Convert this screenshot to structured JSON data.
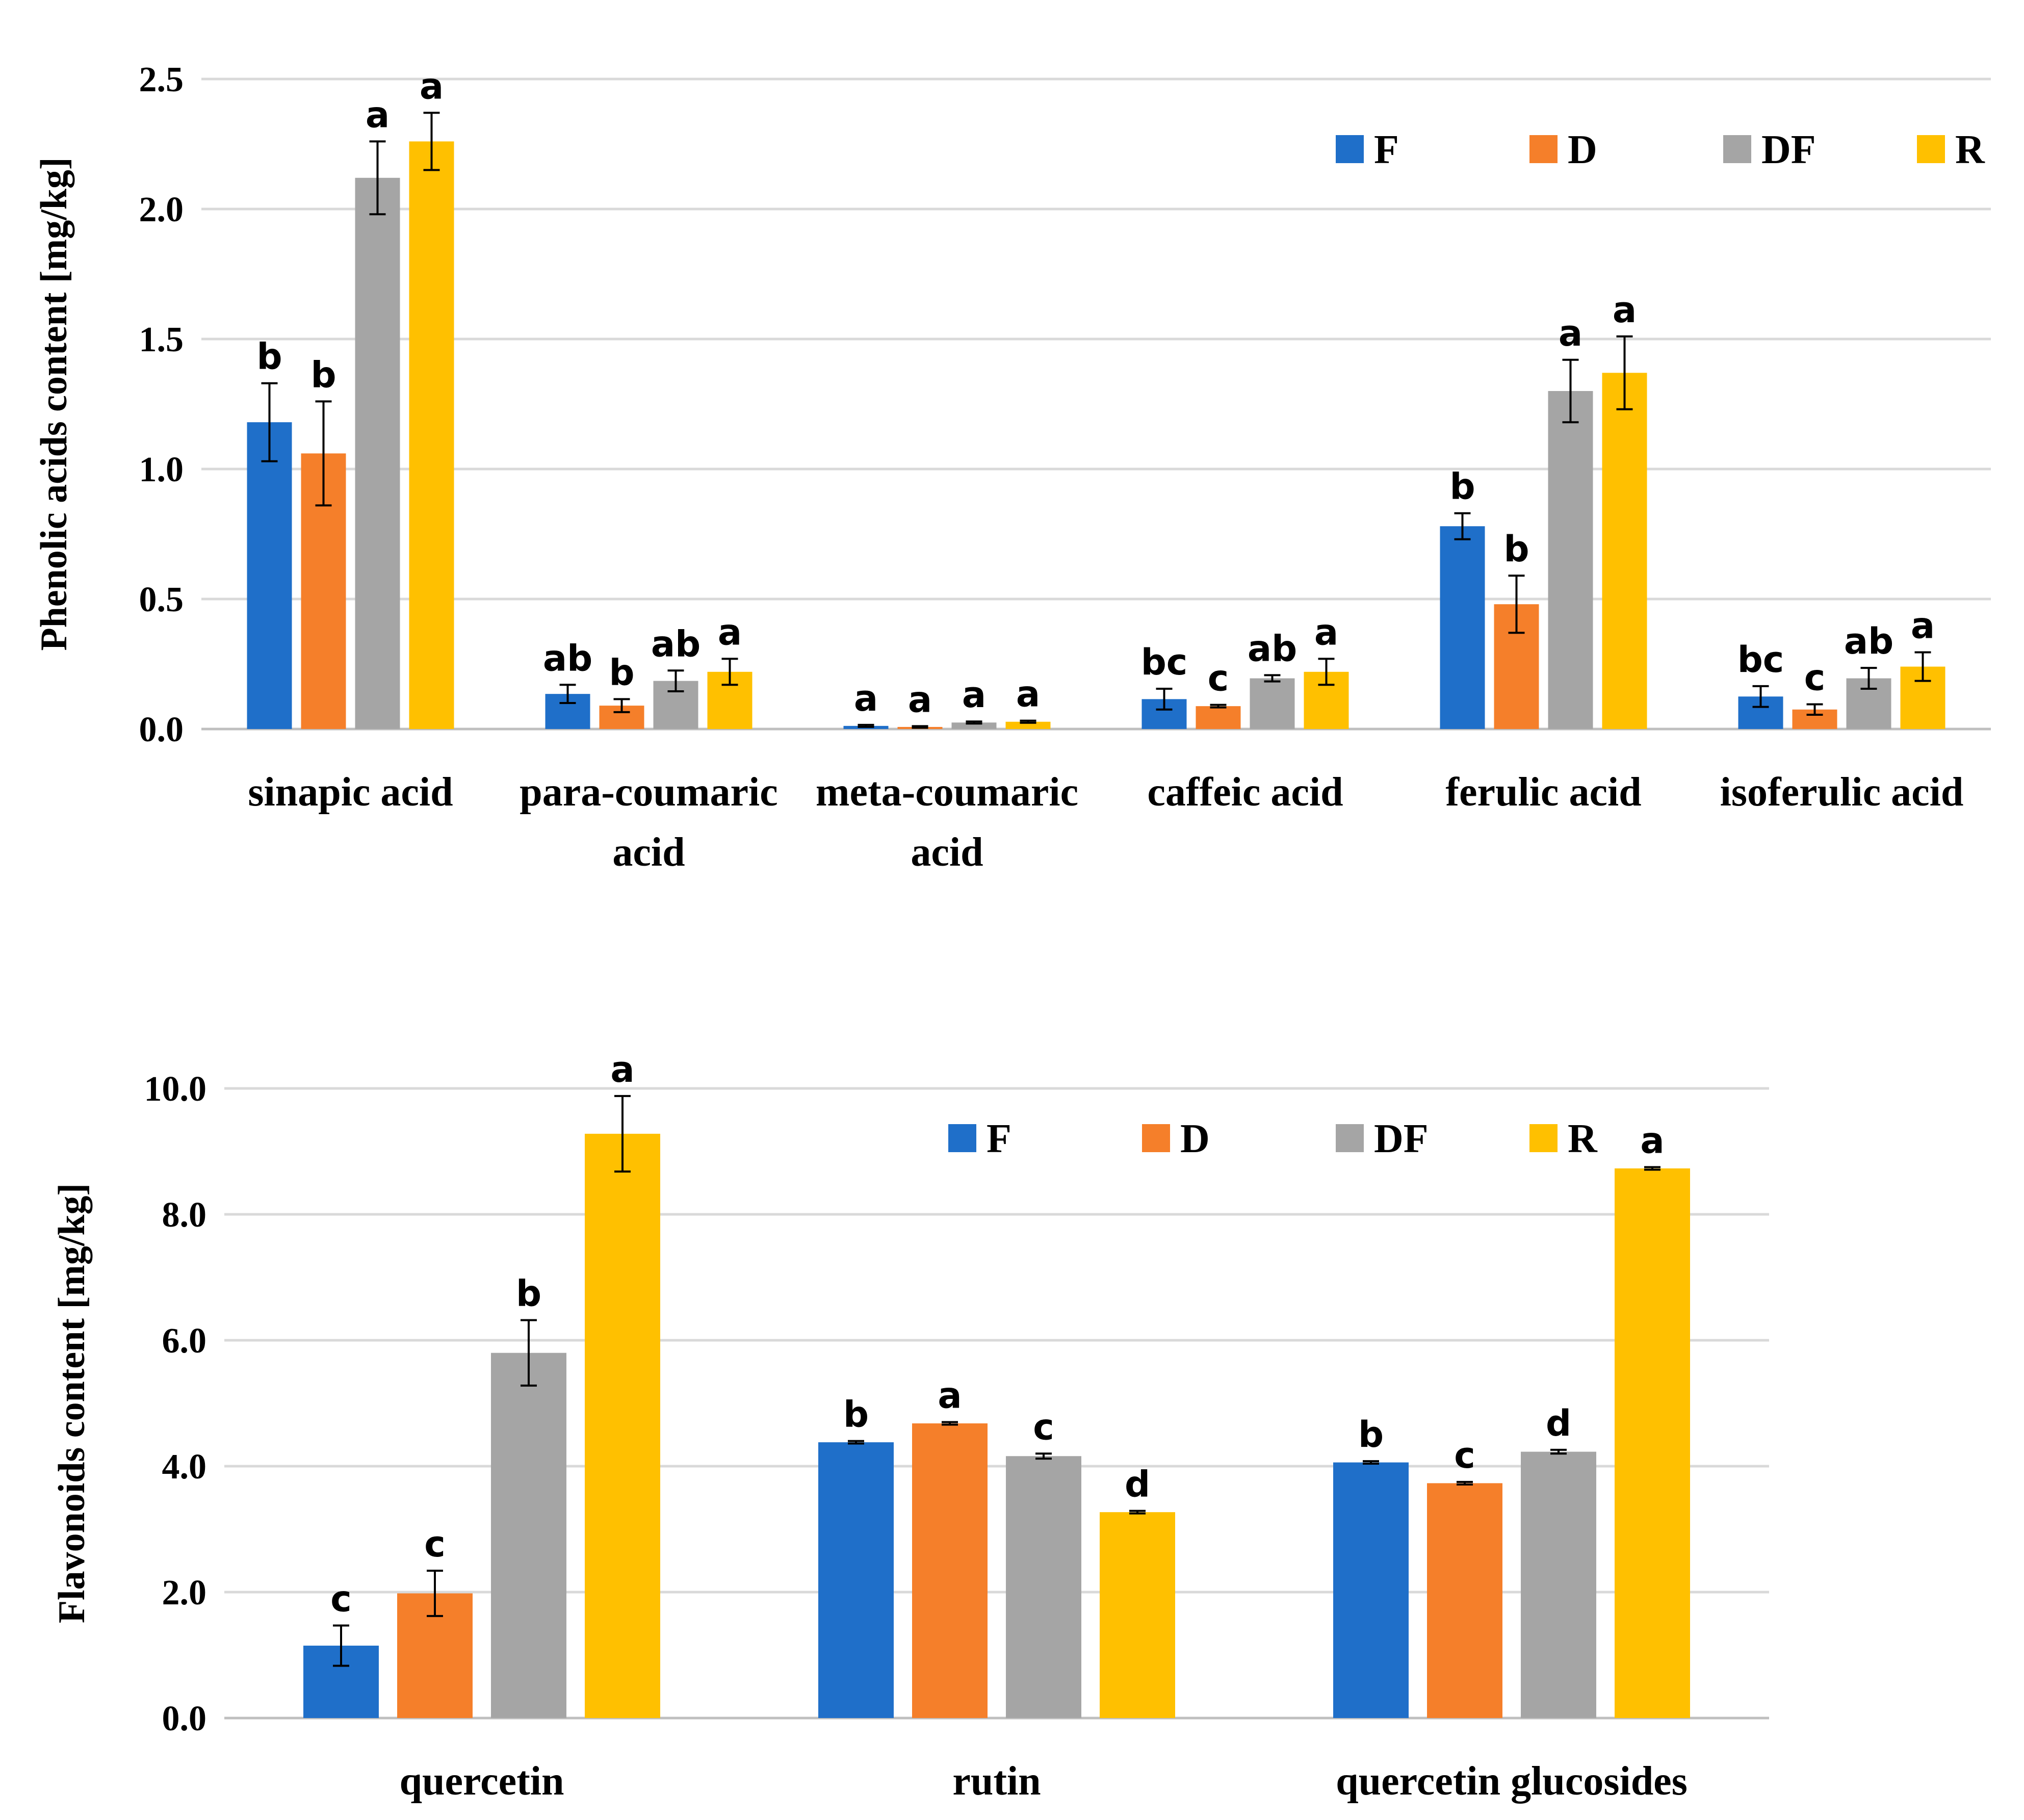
{
  "chart_data": [
    {
      "type": "bar",
      "ylabel": "Phenolic acids content [mg/kg]",
      "ylim": [
        0,
        2.5
      ],
      "yticks": [
        "0.0",
        "0.5",
        "1.0",
        "1.5",
        "2.0",
        "2.5"
      ],
      "grid": true,
      "legend_position": "top-right",
      "categories": [
        [
          "sinapic acid"
        ],
        [
          "para-coumaric",
          "acid"
        ],
        [
          "meta-coumaric",
          "acid"
        ],
        [
          "caffeic acid"
        ],
        [
          "ferulic acid"
        ],
        [
          "isoferulic acid"
        ]
      ],
      "series": [
        {
          "name": "F",
          "color": "#1f6fc9",
          "values": [
            1.18,
            0.135,
            0.012,
            0.115,
            0.78,
            0.125
          ],
          "errors": [
            0.15,
            0.035,
            0.004,
            0.04,
            0.05,
            0.04
          ],
          "labels": [
            "b",
            "ab",
            "a",
            "bc",
            "b",
            "bc"
          ]
        },
        {
          "name": "D",
          "color": "#f57f2a",
          "values": [
            1.06,
            0.09,
            0.008,
            0.088,
            0.48,
            0.075
          ],
          "errors": [
            0.2,
            0.025,
            0.003,
            0.005,
            0.11,
            0.02
          ],
          "labels": [
            "b",
            "b",
            "a",
            "c",
            "b",
            "c"
          ]
        },
        {
          "name": "DF",
          "color": "#a5a5a5",
          "values": [
            2.12,
            0.185,
            0.025,
            0.195,
            1.3,
            0.195
          ],
          "errors": [
            0.14,
            0.04,
            0.004,
            0.012,
            0.12,
            0.04
          ],
          "labels": [
            "a",
            "ab",
            "a",
            "ab",
            "a",
            "ab"
          ]
        },
        {
          "name": "R",
          "color": "#ffc000",
          "values": [
            2.26,
            0.22,
            0.028,
            0.22,
            1.37,
            0.24
          ],
          "errors": [
            0.11,
            0.05,
            0.004,
            0.05,
            0.14,
            0.055
          ],
          "labels": [
            "a",
            "a",
            "a",
            "a",
            "a",
            "a"
          ]
        }
      ]
    },
    {
      "type": "bar",
      "ylabel": "Flavonoids content [mg/kg]",
      "ylim": [
        0,
        10
      ],
      "yticks": [
        "0.0",
        "2.0",
        "4.0",
        "6.0",
        "8.0",
        "10.0"
      ],
      "grid": true,
      "legend_position": "top-center",
      "categories": [
        [
          "quercetin"
        ],
        [
          "rutin"
        ],
        [
          "quercetin glucosides"
        ]
      ],
      "series": [
        {
          "name": "F",
          "color": "#1f6fc9",
          "values": [
            1.15,
            4.38,
            4.06
          ],
          "errors": [
            0.32,
            0.02,
            0.02
          ],
          "labels": [
            "c",
            "b",
            "b"
          ]
        },
        {
          "name": "D",
          "color": "#f57f2a",
          "values": [
            1.98,
            4.68,
            3.73
          ],
          "errors": [
            0.36,
            0.02,
            0.02
          ],
          "labels": [
            "c",
            "a",
            "c"
          ]
        },
        {
          "name": "DF",
          "color": "#a5a5a5",
          "values": [
            5.8,
            4.16,
            4.23
          ],
          "errors": [
            0.52,
            0.04,
            0.03
          ],
          "labels": [
            "b",
            "c",
            "d"
          ]
        },
        {
          "name": "R",
          "color": "#ffc000",
          "values": [
            9.28,
            3.27,
            8.73
          ],
          "errors": [
            0.6,
            0.02,
            0.02
          ],
          "labels": [
            "a",
            "d",
            "a"
          ]
        }
      ]
    }
  ]
}
